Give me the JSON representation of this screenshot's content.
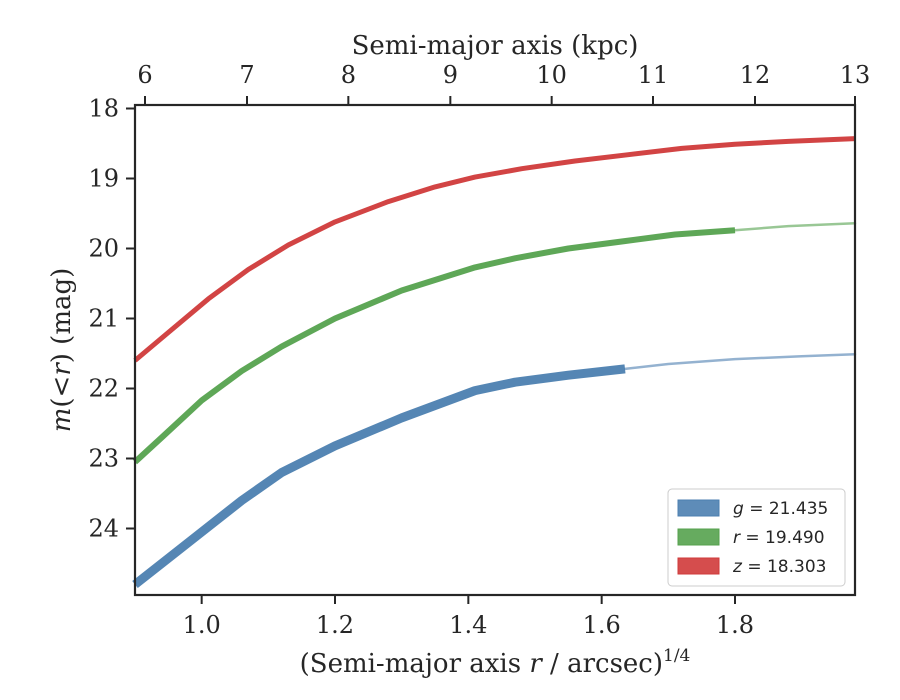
{
  "chart_data": {
    "type": "line",
    "xlabel_prefix": "(Semi-major axis ",
    "xlabel_var": "r",
    "xlabel_mid": " / arcsec)",
    "xlabel_sup": "1/4",
    "ylabel_var": "m",
    "ylabel_paren": "(<",
    "ylabel_var2": "r",
    "ylabel_rest": ") (mag)",
    "top_xlabel": "Semi-major axis (kpc)",
    "xlim": [
      0.9,
      1.98
    ],
    "ylim": [
      24.95,
      17.95
    ],
    "y_inverted": true,
    "x_ticks": [
      1.0,
      1.2,
      1.4,
      1.6,
      1.8
    ],
    "x_tick_labels": [
      "1.0",
      "1.2",
      "1.4",
      "1.6",
      "1.8"
    ],
    "y_ticks": [
      18,
      19,
      20,
      21,
      22,
      23,
      24
    ],
    "y_tick_labels": [
      "18",
      "19",
      "20",
      "21",
      "22",
      "23",
      "24"
    ],
    "top_ticks": [
      6,
      7,
      8,
      9,
      10,
      11,
      12,
      13
    ],
    "top_tick_labels": [
      "6",
      "7",
      "8",
      "9",
      "10",
      "11",
      "12",
      "13"
    ],
    "top_tick_x": [
      0.915,
      1.068,
      1.22,
      1.373,
      1.525,
      1.677,
      1.83,
      1.98
    ],
    "legend_position": "lower-right",
    "series": [
      {
        "band": "g",
        "label_value": "21.435",
        "color": "#4c7fb0",
        "measured_x": [
          0.9,
          0.94,
          1.0,
          1.06,
          1.12,
          1.2,
          1.3,
          1.41,
          1.47,
          1.55,
          1.635
        ],
        "measured_y": [
          24.8,
          24.5,
          24.05,
          23.6,
          23.2,
          22.82,
          22.42,
          22.03,
          21.91,
          21.81,
          21.72
        ],
        "model_x": [
          1.635,
          1.7,
          1.8,
          1.9,
          1.98
        ],
        "model_y": [
          21.72,
          21.65,
          21.58,
          21.54,
          21.51
        ]
      },
      {
        "band": "r",
        "label_value": "19.490",
        "color": "#55a24e",
        "measured_x": [
          0.9,
          0.94,
          1.0,
          1.06,
          1.12,
          1.2,
          1.3,
          1.41,
          1.47,
          1.55,
          1.63,
          1.71,
          1.8
        ],
        "measured_y": [
          23.05,
          22.7,
          22.17,
          21.75,
          21.4,
          21.0,
          20.6,
          20.27,
          20.14,
          20.0,
          19.9,
          19.8,
          19.74
        ],
        "model_x": [
          1.8,
          1.88,
          1.98
        ],
        "model_y": [
          19.74,
          19.68,
          19.64
        ]
      },
      {
        "band": "z",
        "label_value": "18.303",
        "color": "#d03a3a",
        "measured_x": [
          0.9,
          0.95,
          1.01,
          1.07,
          1.13,
          1.2,
          1.28,
          1.35,
          1.41,
          1.48,
          1.56,
          1.64,
          1.72,
          1.8,
          1.88,
          1.98
        ],
        "measured_y": [
          21.6,
          21.2,
          20.72,
          20.3,
          19.95,
          19.62,
          19.33,
          19.12,
          18.98,
          18.86,
          18.75,
          18.66,
          18.57,
          18.51,
          18.47,
          18.43
        ],
        "model_x": [],
        "model_y": []
      }
    ]
  }
}
